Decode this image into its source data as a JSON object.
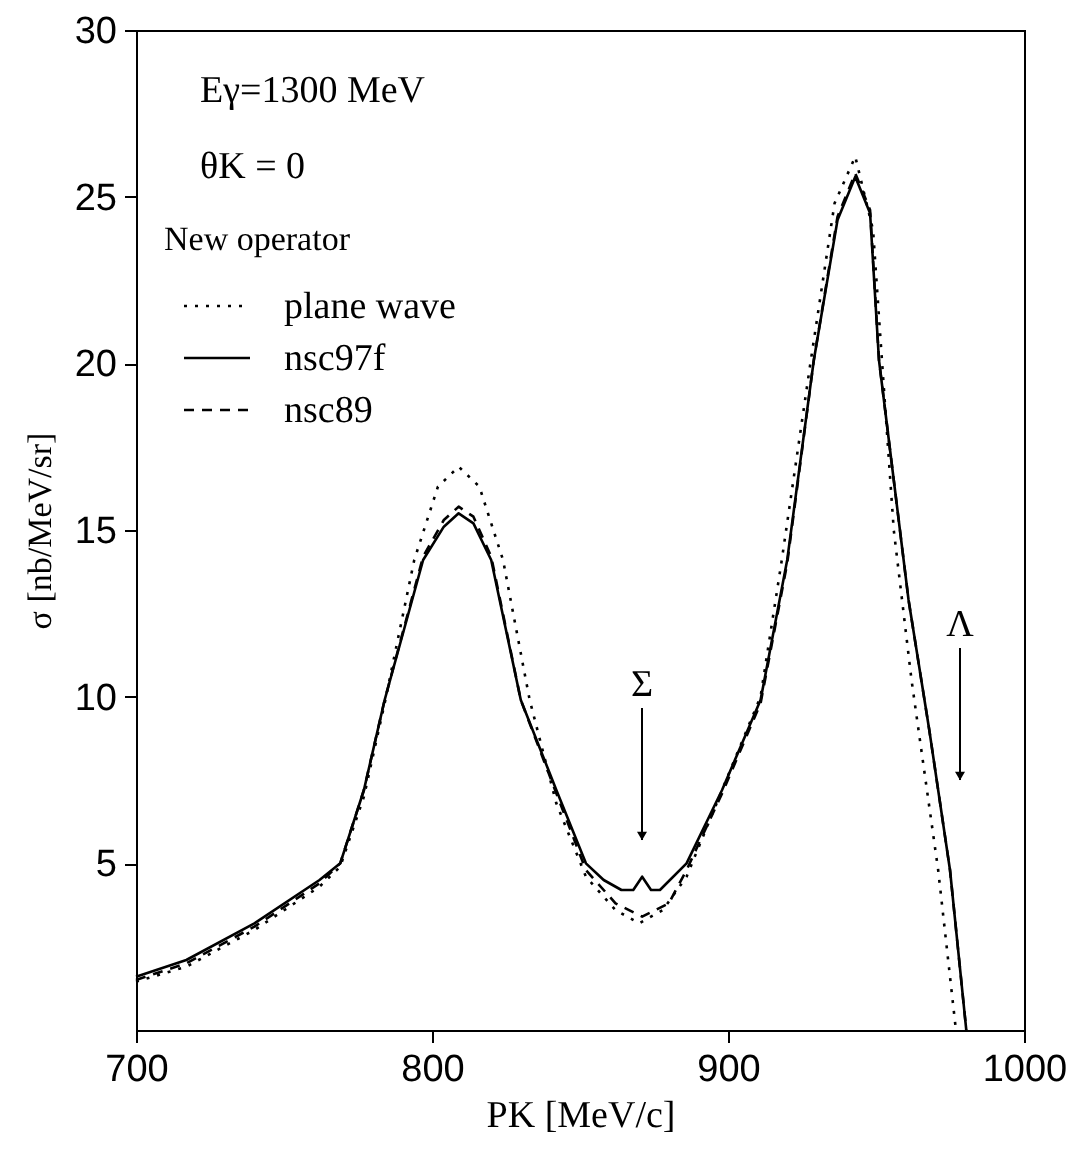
{
  "chart_data": {
    "type": "line",
    "xlabel": "PK [MeV/c]",
    "ylabel": "σ [nb/MeV/sr]",
    "legend_title": "New operator",
    "legend": "top left",
    "grid": false,
    "marker": "none",
    "xlim": [
      700,
      1000
    ],
    "xticks": [
      700,
      800,
      900,
      {
        "value": 1000,
        "label": "1000"
      }
    ],
    "ylim": [
      0,
      30
    ],
    "yticks": [
      5,
      10,
      15,
      20,
      25,
      30
    ],
    "annotations": [
      "Eγ=1300 MeV",
      "θK = 0",
      "Σ",
      "Λ"
    ],
    "series": [
      {
        "name": "plane wave",
        "color": "#000000",
        "line_style": "dotted",
        "x": [
          700,
          717,
          740,
          762,
          769,
          777,
          784,
          794,
          802,
          809,
          816,
          824,
          833,
          842,
          852,
          862,
          870,
          878,
          886,
          898,
          911,
          918,
          928,
          936,
          943,
          949,
          952,
          956,
          962,
          971,
          977
        ],
        "values": [
          1.45,
          1.9,
          3.0,
          4.3,
          4.9,
          7.0,
          9.8,
          14.1,
          16.3,
          16.9,
          16.3,
          14.1,
          9.9,
          6.8,
          4.6,
          3.6,
          3.2,
          3.6,
          4.6,
          7.2,
          10.0,
          14.0,
          20.1,
          24.8,
          26.2,
          24.0,
          20.1,
          15.0,
          10.5,
          4.8,
          0
        ]
      },
      {
        "name": "nsc97f",
        "color": "#000000",
        "line_style": "solid",
        "x": [
          700,
          717,
          740,
          762,
          769,
          777,
          784,
          797,
          804,
          809,
          814,
          820,
          830,
          842,
          852,
          858,
          864,
          868,
          871,
          874,
          877,
          886,
          898,
          911,
          920,
          929,
          937,
          943,
          948,
          951,
          956,
          961,
          968,
          975,
          980.5
        ],
        "values": [
          1.6,
          2.1,
          3.2,
          4.5,
          5.0,
          7.2,
          9.9,
          14.1,
          15.1,
          15.5,
          15.2,
          14.1,
          9.9,
          7.2,
          5.0,
          4.5,
          4.2,
          4.2,
          4.6,
          4.2,
          4.2,
          5.0,
          7.2,
          9.9,
          14.1,
          20.1,
          24.3,
          25.6,
          24.5,
          20.1,
          16.5,
          12.9,
          9.0,
          4.8,
          0
        ]
      },
      {
        "name": "nsc89",
        "color": "#000000",
        "line_style": "dashed",
        "x": [
          700,
          717,
          740,
          762,
          769,
          777,
          784,
          797,
          804,
          809,
          814,
          820,
          830,
          842,
          852,
          862,
          871,
          880,
          886,
          898,
          911,
          920,
          929,
          937,
          943,
          948,
          951,
          956,
          961,
          968,
          975,
          980.5
        ],
        "values": [
          1.5,
          2.0,
          3.1,
          4.4,
          5.0,
          7.2,
          9.9,
          14.2,
          15.3,
          15.7,
          15.4,
          14.2,
          9.9,
          7.1,
          4.8,
          3.8,
          3.4,
          3.8,
          4.8,
          7.1,
          9.8,
          14.0,
          20.1,
          24.4,
          25.7,
          24.6,
          20.1,
          16.5,
          12.9,
          9.0,
          4.8,
          0
        ]
      }
    ]
  }
}
